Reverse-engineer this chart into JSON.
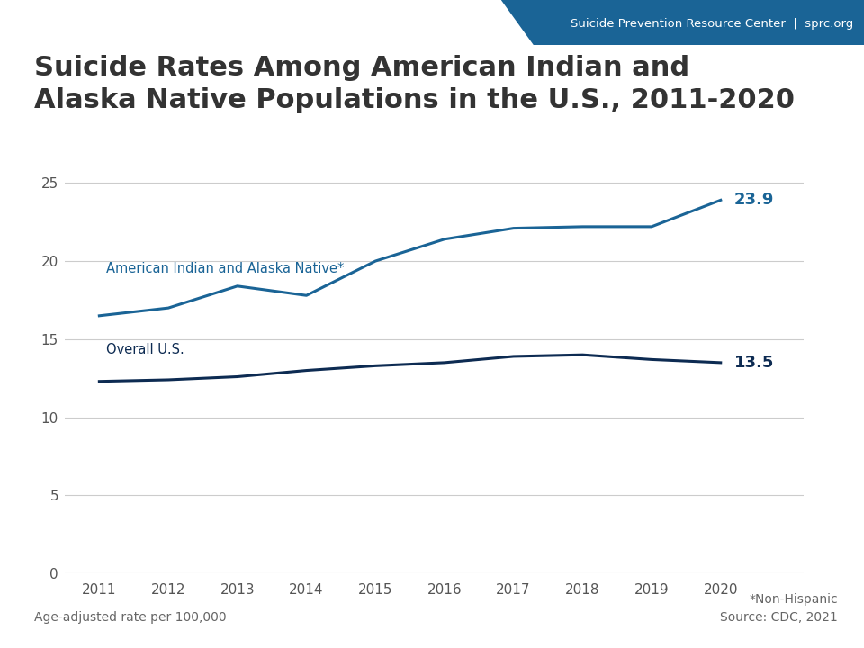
{
  "title_line1": "Suicide Rates Among American Indian and",
  "title_line2": "Alaska Native Populations in the U.S., 2011-2020",
  "title_fontsize": 22,
  "years": [
    2011,
    2012,
    2013,
    2014,
    2015,
    2016,
    2017,
    2018,
    2019,
    2020
  ],
  "aian_values": [
    16.5,
    17.0,
    18.4,
    17.8,
    20.0,
    21.4,
    22.1,
    22.2,
    22.2,
    23.9
  ],
  "us_values": [
    12.3,
    12.4,
    12.6,
    13.0,
    13.3,
    13.5,
    13.9,
    14.0,
    13.7,
    13.5
  ],
  "aian_color": "#1a6496",
  "us_color": "#0d2b52",
  "aian_label": "American Indian and Alaska Native*",
  "us_label": "Overall U.S.",
  "aian_end_value": "23.9",
  "us_end_value": "13.5",
  "ylim": [
    0,
    28
  ],
  "yticks": [
    0,
    5,
    10,
    15,
    20,
    25
  ],
  "xlim": [
    2010.5,
    2021.2
  ],
  "grid_color": "#cccccc",
  "bg_color": "#ffffff",
  "header_blue": "#1a6496",
  "header_text": "Suicide Prevention Resource Center  |  sprc.org",
  "footnote_left": "Age-adjusted rate per 100,000",
  "footnote_right1": "*Non-Hispanic",
  "footnote_right2": "Source: CDC, 2021",
  "line_width": 2.2,
  "separator_color": "#cccccc"
}
